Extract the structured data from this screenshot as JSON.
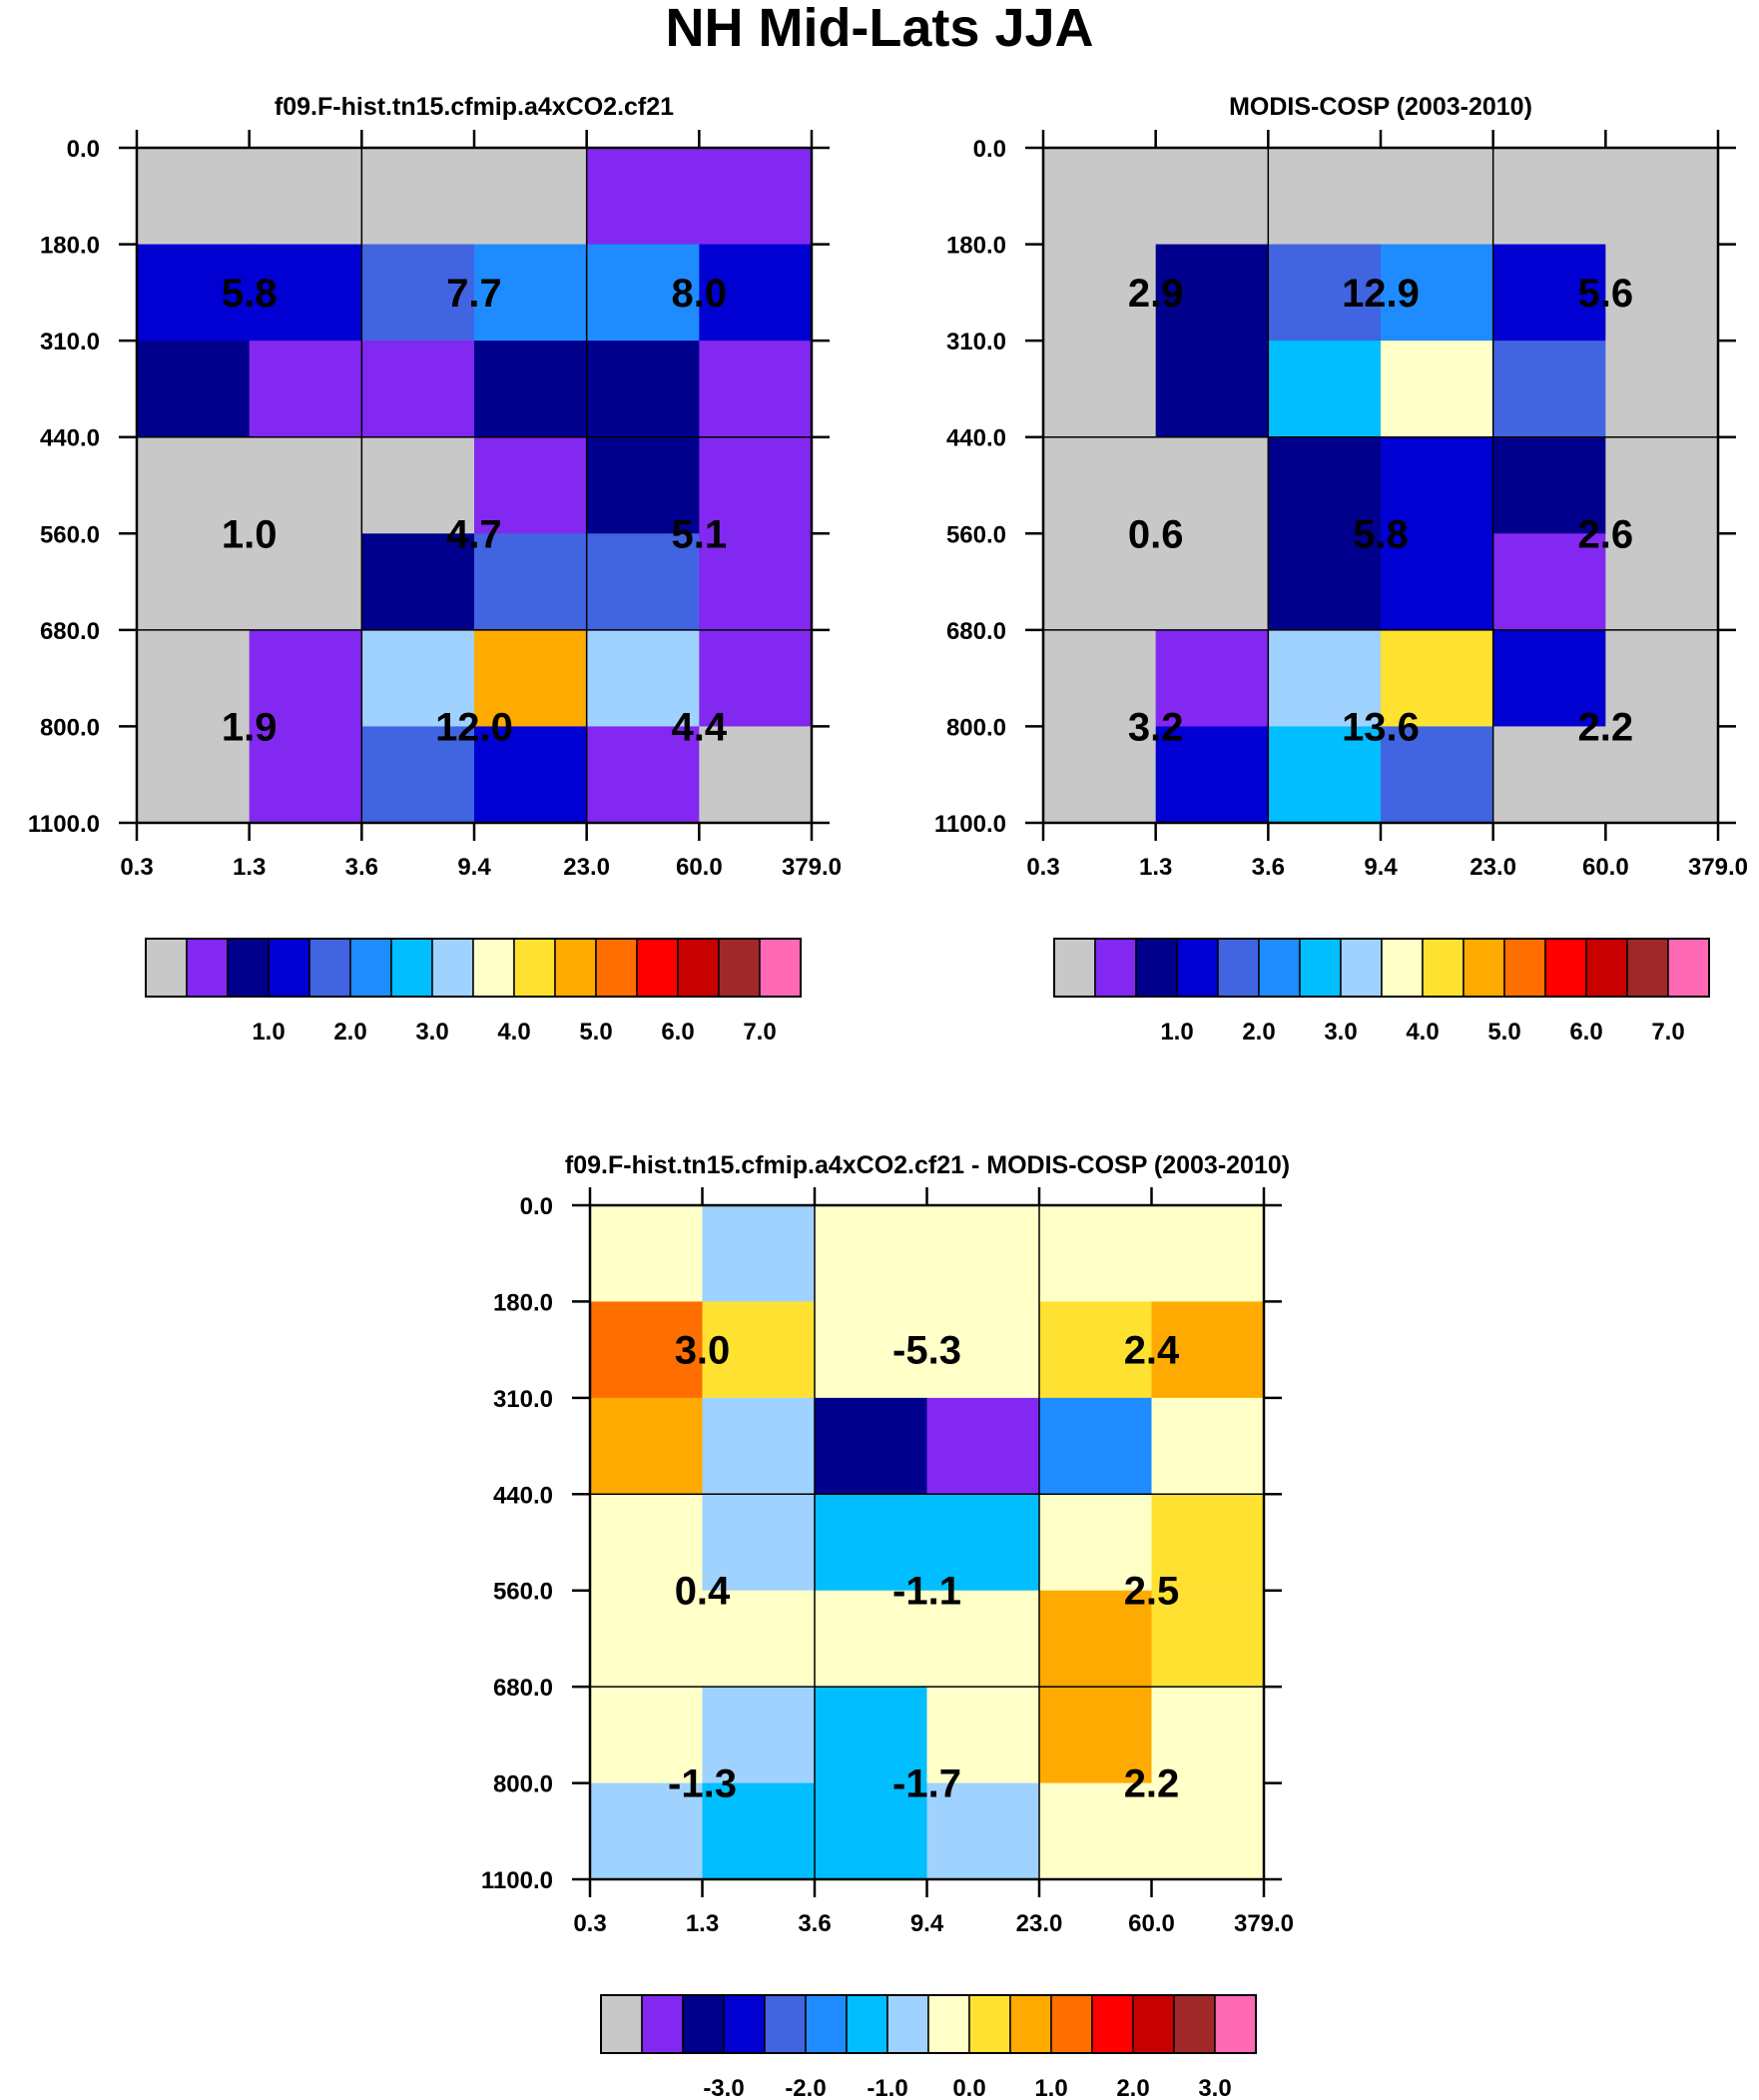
{
  "title": "NH Mid-Lats JJA",
  "chart_data": [
    {
      "type": "heatmap",
      "title": "f09.F-hist.tn15.cfmip.a4xCO2.cf21",
      "xlabel": "",
      "ylabel": "",
      "x_ticks": [
        "0.3",
        "1.3",
        "3.6",
        "9.4",
        "23.0",
        "60.0",
        "379.0"
      ],
      "y_ticks": [
        "0.0",
        "180.0",
        "310.0",
        "440.0",
        "560.0",
        "680.0",
        "800.0",
        "1100.0"
      ],
      "cell_color_levels": [
        [
          0,
          0,
          0,
          0,
          1,
          1
        ],
        [
          3,
          3,
          4,
          5,
          5,
          3
        ],
        [
          2,
          1,
          1,
          2,
          2,
          1
        ],
        [
          0,
          0,
          0,
          1,
          2,
          1
        ],
        [
          0,
          0,
          2,
          4,
          4,
          1
        ],
        [
          0,
          1,
          7,
          10,
          7,
          1
        ],
        [
          0,
          1,
          4,
          3,
          1,
          0
        ]
      ],
      "block_values": [
        [
          "5.8",
          "7.7",
          "8.0"
        ],
        [
          "1.0",
          "4.7",
          "5.1"
        ],
        [
          "1.9",
          "12.0",
          "4.4"
        ]
      ],
      "colorbar": {
        "colors": [
          "#c8c8c8",
          "#8228f0",
          "#00008c",
          "#0000d2",
          "#4164e1",
          "#1e8cff",
          "#00beff",
          "#a0d2ff",
          "#ffffc8",
          "#ffe132",
          "#ffaa00",
          "#ff6e00",
          "#ff0000",
          "#c80000",
          "#a02828",
          "#ff69b4"
        ],
        "labels": [
          "1.0",
          "2.0",
          "3.0",
          "4.0",
          "5.0",
          "6.0",
          "7.0"
        ]
      }
    },
    {
      "type": "heatmap",
      "title": "MODIS-COSP (2003-2010)",
      "xlabel": "",
      "ylabel": "",
      "x_ticks": [
        "0.3",
        "1.3",
        "3.6",
        "9.4",
        "23.0",
        "60.0",
        "379.0"
      ],
      "y_ticks": [
        "0.0",
        "180.0",
        "310.0",
        "440.0",
        "560.0",
        "680.0",
        "800.0",
        "1100.0"
      ],
      "cell_color_levels": [
        [
          0,
          0,
          0,
          0,
          0,
          0
        ],
        [
          0,
          2,
          4,
          5,
          3,
          0
        ],
        [
          0,
          2,
          6,
          8,
          4,
          0
        ],
        [
          0,
          0,
          2,
          3,
          2,
          0
        ],
        [
          0,
          0,
          2,
          3,
          1,
          0
        ],
        [
          0,
          1,
          7,
          9,
          3,
          0
        ],
        [
          0,
          3,
          6,
          4,
          0,
          0
        ]
      ],
      "block_values": [
        [
          "2.9",
          "12.9",
          "5.6"
        ],
        [
          "0.6",
          "5.8",
          "2.6"
        ],
        [
          "3.2",
          "13.6",
          "2.2"
        ]
      ],
      "colorbar": {
        "colors": [
          "#c8c8c8",
          "#8228f0",
          "#00008c",
          "#0000d2",
          "#4164e1",
          "#1e8cff",
          "#00beff",
          "#a0d2ff",
          "#ffffc8",
          "#ffe132",
          "#ffaa00",
          "#ff6e00",
          "#ff0000",
          "#c80000",
          "#a02828",
          "#ff69b4"
        ],
        "labels": [
          "1.0",
          "2.0",
          "3.0",
          "4.0",
          "5.0",
          "6.0",
          "7.0"
        ]
      }
    },
    {
      "type": "heatmap",
      "title": "f09.F-hist.tn15.cfmip.a4xCO2.cf21 - MODIS-COSP (2003-2010)",
      "xlabel": "",
      "ylabel": "",
      "x_ticks": [
        "0.3",
        "1.3",
        "3.6",
        "9.4",
        "23.0",
        "60.0",
        "379.0"
      ],
      "y_ticks": [
        "0.0",
        "180.0",
        "310.0",
        "440.0",
        "560.0",
        "680.0",
        "800.0",
        "1100.0"
      ],
      "cell_color_levels": [
        [
          8,
          7,
          8,
          8,
          8,
          8
        ],
        [
          11,
          9,
          8,
          8,
          9,
          10
        ],
        [
          10,
          7,
          2,
          1,
          5,
          8
        ],
        [
          8,
          7,
          6,
          6,
          8,
          9
        ],
        [
          8,
          8,
          8,
          8,
          10,
          9
        ],
        [
          8,
          7,
          6,
          8,
          10,
          8
        ],
        [
          7,
          6,
          6,
          7,
          8,
          8
        ]
      ],
      "block_values": [
        [
          "3.0",
          "-5.3",
          "2.4"
        ],
        [
          "0.4",
          "-1.1",
          "2.5"
        ],
        [
          "-1.3",
          "-1.7",
          "2.2"
        ]
      ],
      "colorbar": {
        "colors": [
          "#c8c8c8",
          "#8228f0",
          "#00008c",
          "#0000d2",
          "#4164e1",
          "#1e8cff",
          "#00beff",
          "#a0d2ff",
          "#ffffc8",
          "#ffe132",
          "#ffaa00",
          "#ff6e00",
          "#ff0000",
          "#c80000",
          "#a02828",
          "#ff69b4"
        ],
        "labels": [
          "-3.0",
          "-2.0",
          "-1.0",
          "0.0",
          "1.0",
          "2.0",
          "3.0"
        ]
      }
    }
  ]
}
